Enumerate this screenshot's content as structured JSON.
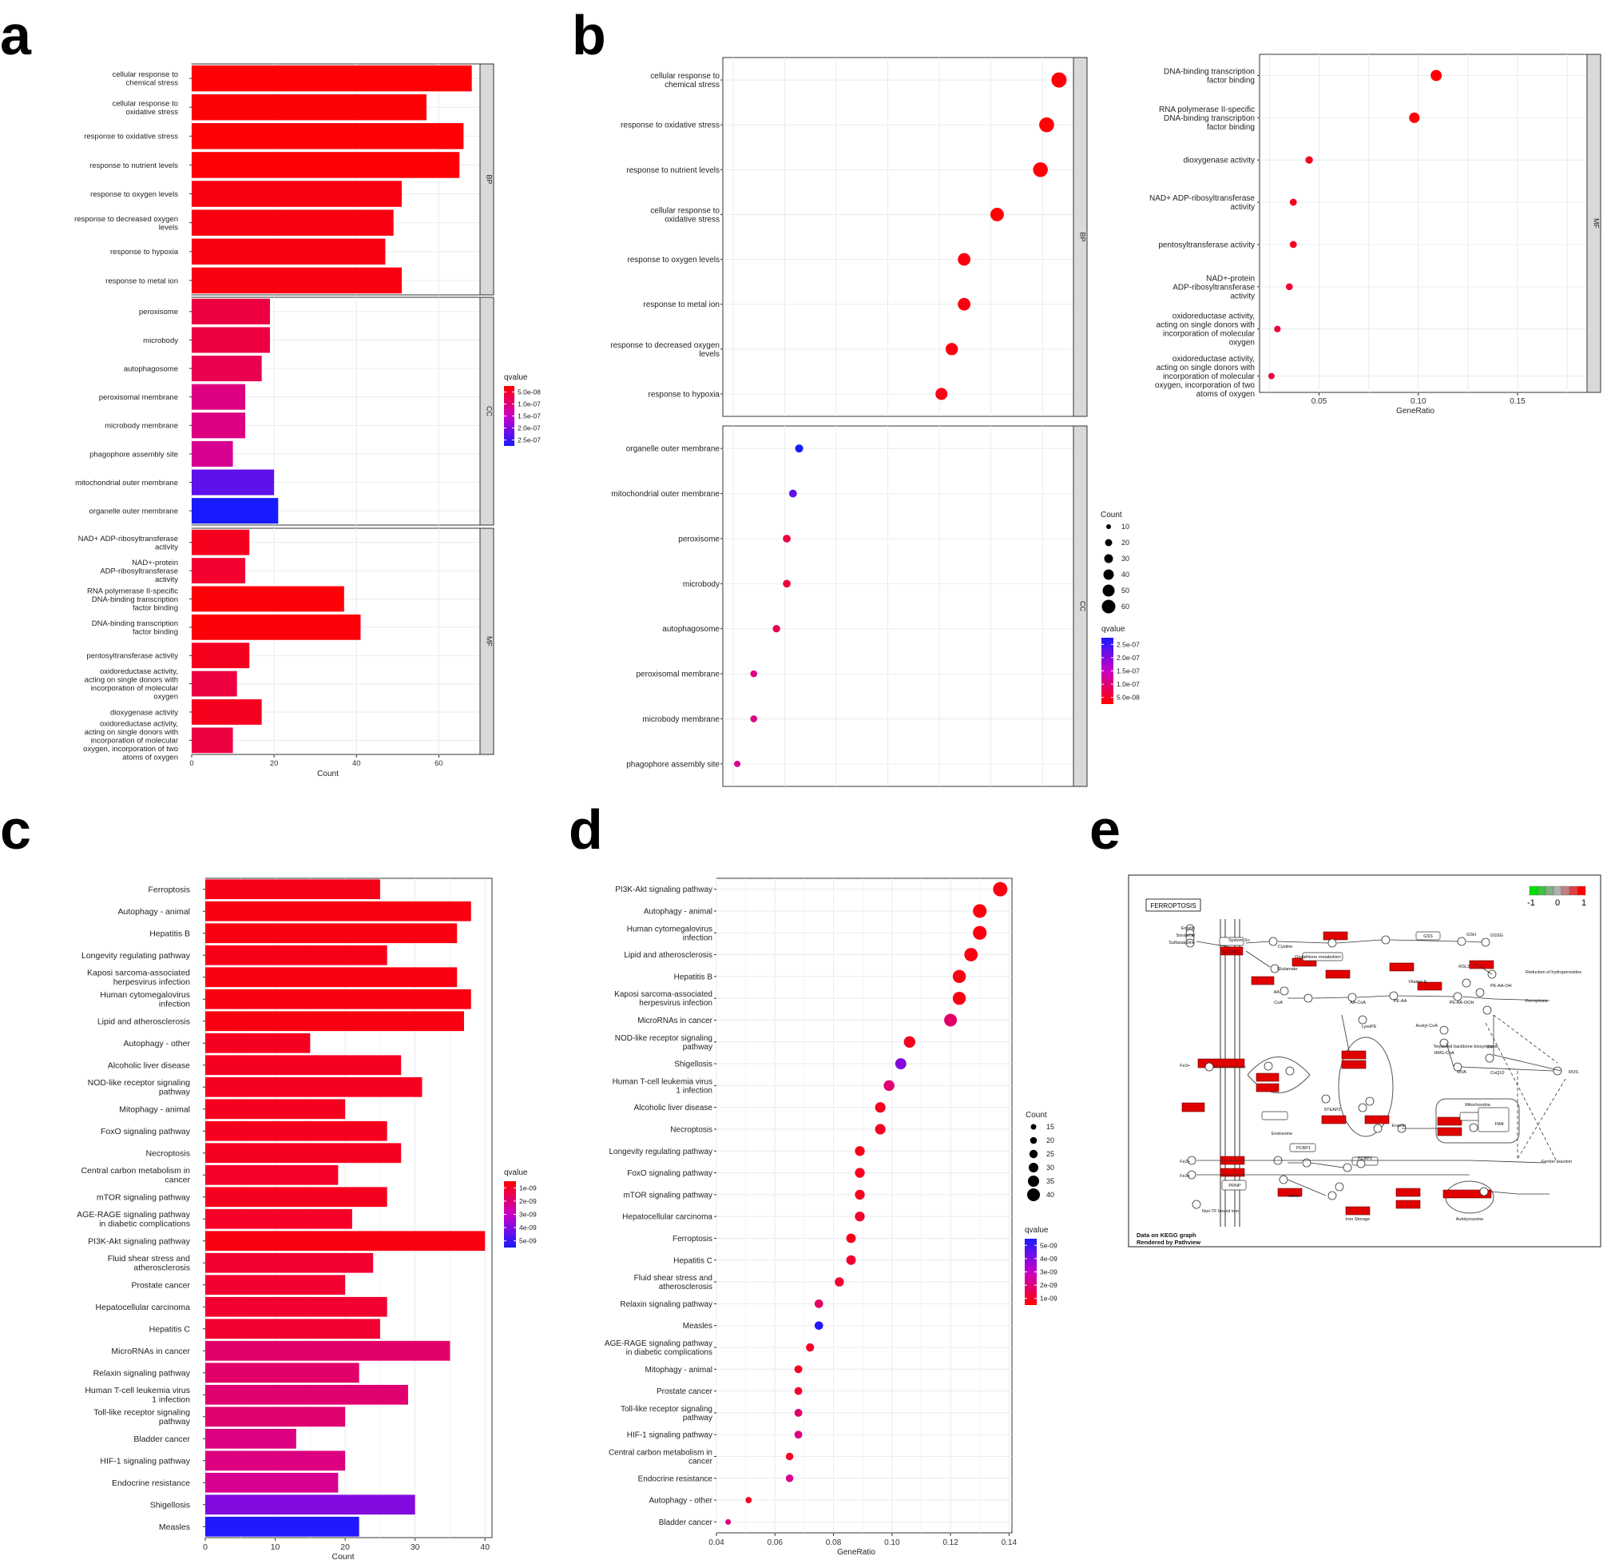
{
  "panel_letters": {
    "a": "a",
    "b": "b",
    "c": "c",
    "d": "d",
    "e": "e"
  },
  "colors": {
    "high_sig": "#ff0000",
    "mid": "#c800c8",
    "low_sig": "#1a1aff",
    "strip": "#d9d9d9",
    "grid": "#ebebeb"
  },
  "chart_data": [
    {
      "id": "a",
      "type": "bar",
      "orientation": "horizontal",
      "xlabel": "Count",
      "xlim": [
        0,
        70
      ],
      "xticks": [
        0,
        20,
        40,
        60
      ],
      "groups": [
        {
          "strip": "BP",
          "categories": [
            "cellular response to\nchemical stress",
            "cellular response to\noxidative stress",
            "response to oxidative stress",
            "response to nutrient levels",
            "response to oxygen levels",
            "response to decreased oxygen\nlevels",
            "response to hypoxia",
            "response to metal ion"
          ],
          "values": [
            68,
            57,
            66,
            65,
            51,
            49,
            47,
            51
          ],
          "qvalues": [
            3e-09,
            4e-09,
            3e-09,
            3e-09,
            1e-08,
            1e-08,
            1.2e-08,
            1e-08
          ]
        },
        {
          "strip": "CC",
          "categories": [
            "peroxisome",
            "microbody",
            "autophagosome",
            "peroxisomal membrane",
            "microbody membrane",
            "phagophore assembly site",
            "mitochondrial outer membrane",
            "organelle outer membrane"
          ],
          "values": [
            19,
            19,
            17,
            13,
            13,
            10,
            20,
            21
          ],
          "qvalues": [
            4e-08,
            4e-08,
            5e-08,
            8e-08,
            8e-08,
            9e-08,
            2e-07,
            2.6e-07
          ]
        },
        {
          "strip": "MF",
          "categories": [
            "NAD+ ADP-ribosyltransferase\nactivity",
            "NAD+-protein\nADP-ribosyltransferase\nactivity",
            "RNA polymerase II-specific\nDNA-binding transcription\nfactor binding",
            "DNA-binding transcription\nfactor binding",
            "pentosyltransferase activity",
            "oxidoreductase activity,\nacting on single donors with\nincorporation of molecular\noxygen",
            "dioxygenase activity",
            "oxidoreductase activity,\nacting on single donors with\nincorporation of molecular\noxygen, incorporation of two\natoms of oxygen"
          ],
          "values": [
            14,
            13,
            37,
            41,
            14,
            11,
            17,
            10
          ],
          "qvalues": [
            2e-08,
            3e-08,
            5e-09,
            5e-09,
            2e-08,
            4e-08,
            2e-08,
            4e-08
          ]
        }
      ],
      "legend": {
        "title": "qvalue",
        "labels": [
          "5.0e-08",
          "1.0e-07",
          "1.5e-07",
          "2.0e-07",
          "2.5e-07"
        ],
        "range": [
          0,
          2.5e-07
        ]
      }
    },
    {
      "id": "b",
      "type": "scatter",
      "xlabel": "GeneRatio",
      "xlim": [
        0.02,
        0.185
      ],
      "xticks": [
        0.05,
        0.1,
        0.15
      ],
      "xticklabels": [
        "0.05",
        "0.10",
        "0.15"
      ],
      "groups": [
        {
          "strip": "BP",
          "categories": [
            "cellular response to\nchemical stress",
            "response to oxidative stress",
            "response to nutrient levels",
            "cellular response to\noxidative stress",
            "response to oxygen levels",
            "response to metal ion",
            "response to decreased oxygen\nlevels",
            "response to hypoxia"
          ],
          "x": [
            0.183,
            0.177,
            0.174,
            0.153,
            0.137,
            0.137,
            0.131,
            0.126
          ],
          "counts": [
            68,
            66,
            65,
            57,
            51,
            51,
            49,
            47
          ],
          "qvalues": [
            3e-09,
            3e-09,
            3e-09,
            4e-09,
            1e-08,
            1e-08,
            1e-08,
            1.2e-08
          ]
        },
        {
          "strip": "CC",
          "categories": [
            "organelle outer membrane",
            "mitochondrial outer membrane",
            "peroxisome",
            "microbody",
            "autophagosome",
            "peroxisomal membrane",
            "microbody membrane",
            "phagophore assembly site"
          ],
          "x": [
            0.057,
            0.054,
            0.051,
            0.051,
            0.046,
            0.035,
            0.035,
            0.027
          ],
          "counts": [
            21,
            20,
            19,
            19,
            17,
            13,
            13,
            10
          ],
          "qvalues": [
            2.6e-07,
            2e-07,
            4e-08,
            4e-08,
            5e-08,
            8e-08,
            8e-08,
            9e-08
          ]
        },
        {
          "strip": "MF",
          "categories": [
            "DNA-binding transcription\nfactor binding",
            "RNA polymerase II-specific\nDNA-binding transcription\nfactor binding",
            "dioxygenase activity",
            "NAD+ ADP-ribosyltransferase\nactivity",
            "pentosyltransferase activity",
            "NAD+-protein\nADP-ribosyltransferase\nactivity",
            "oxidoreductase activity,\nacting on single donors with\nincorporation of molecular\noxygen",
            "oxidoreductase activity,\nacting on single donors with\nincorporation of molecular\noxygen, incorporation of two\natoms of oxygen"
          ],
          "x": [
            0.109,
            0.098,
            0.045,
            0.037,
            0.037,
            0.035,
            0.029,
            0.026
          ],
          "counts": [
            41,
            37,
            17,
            14,
            14,
            13,
            11,
            10
          ],
          "qvalues": [
            5e-09,
            5e-09,
            2e-08,
            2e-08,
            2e-08,
            3e-08,
            4e-08,
            4e-08
          ]
        }
      ],
      "size_legend": {
        "title": "Count",
        "labels": [
          "10",
          "20",
          "30",
          "40",
          "50",
          "60"
        ]
      },
      "legend": {
        "title": "qvalue",
        "labels": [
          "2.5e-07",
          "2.0e-07",
          "1.5e-07",
          "1.0e-07",
          "5.0e-08"
        ],
        "range": [
          0,
          2.5e-07
        ]
      }
    },
    {
      "id": "c",
      "type": "bar",
      "orientation": "horizontal",
      "xlabel": "Count",
      "xlim": [
        0,
        41
      ],
      "xticks": [
        0,
        10,
        20,
        30,
        40
      ],
      "categories": [
        "Ferroptosis",
        "Autophagy - animal",
        "Hepatitis B",
        "Longevity regulating pathway",
        "Kaposi sarcoma-associated\nherpesvirus infection",
        "Human cytomegalovirus\ninfection",
        "Lipid and atherosclerosis",
        "Autophagy - other",
        "Alcoholic liver disease",
        "NOD-like receptor signaling\npathway",
        "Mitophagy - animal",
        "FoxO signaling pathway",
        "Necroptosis",
        "Central carbon metabolism in\ncancer",
        "mTOR signaling pathway",
        "AGE-RAGE signaling pathway\nin diabetic complications",
        "PI3K-Akt signaling pathway",
        "Fluid shear stress and\natherosclerosis",
        "Prostate cancer",
        "Hepatocellular carcinoma",
        "Hepatitis C",
        "MicroRNAs in cancer",
        "Relaxin signaling pathway",
        "Human T-cell leukemia virus\n1 infection",
        "Toll-like receptor signaling\npathway",
        "Bladder cancer",
        "HIF-1 signaling pathway",
        "Endocrine resistance",
        "Shigellosis",
        "Measles"
      ],
      "values": [
        25,
        38,
        36,
        26,
        36,
        38,
        37,
        15,
        28,
        31,
        20,
        26,
        28,
        19,
        26,
        21,
        40,
        24,
        20,
        26,
        25,
        35,
        22,
        29,
        20,
        13,
        20,
        19,
        30,
        22
      ],
      "qvalues": [
        3e-10,
        2e-10,
        2e-10,
        3e-10,
        2e-10,
        2e-10,
        2e-10,
        4e-10,
        4e-10,
        4e-10,
        4e-10,
        4e-10,
        4e-10,
        5e-10,
        4e-10,
        5e-10,
        2e-10,
        6e-10,
        6e-10,
        6e-10,
        6e-10,
        1.3e-09,
        1.3e-09,
        1.4e-09,
        1.4e-09,
        1.6e-09,
        1.6e-09,
        1.8e-09,
        3.5e-09,
        4.9e-09
      ],
      "legend": {
        "title": "qvalue",
        "labels": [
          "1e-09",
          "2e-09",
          "3e-09",
          "4e-09",
          "5e-09"
        ],
        "range": [
          0,
          5e-09
        ]
      }
    },
    {
      "id": "d",
      "type": "scatter",
      "xlabel": "GeneRatio",
      "xlim": [
        0.04,
        0.141
      ],
      "xticks": [
        0.04,
        0.06,
        0.08,
        0.1,
        0.12,
        0.14
      ],
      "xticklabels": [
        "0.04",
        "0.06",
        "0.08",
        "0.10",
        "0.12",
        "0.14"
      ],
      "categories": [
        "PI3K-Akt signaling pathway",
        "Autophagy - animal",
        "Human cytomegalovirus\ninfection",
        "Lipid and atherosclerosis",
        "Hepatitis B",
        "Kaposi sarcoma-associated\nherpesvirus infection",
        "MicroRNAs in cancer",
        "NOD-like receptor signaling\npathway",
        "Shigellosis",
        "Human T-cell leukemia virus\n1 infection",
        "Alcoholic liver disease",
        "Necroptosis",
        "Longevity regulating pathway",
        "FoxO signaling pathway",
        "mTOR signaling pathway",
        "Hepatocellular carcinoma",
        "Ferroptosis",
        "Hepatitis C",
        "Fluid shear stress and\natherosclerosis",
        "Relaxin signaling pathway",
        "Measles",
        "AGE-RAGE signaling pathway\nin diabetic complications",
        "Mitophagy - animal",
        "Prostate cancer",
        "Toll-like receptor signaling\npathway",
        "HIF-1 signaling pathway",
        "Central carbon metabolism in\ncancer",
        "Endocrine resistance",
        "Autophagy - other",
        "Bladder cancer"
      ],
      "x": [
        0.137,
        0.13,
        0.13,
        0.127,
        0.123,
        0.123,
        0.12,
        0.106,
        0.103,
        0.099,
        0.096,
        0.096,
        0.089,
        0.089,
        0.089,
        0.089,
        0.086,
        0.086,
        0.082,
        0.075,
        0.075,
        0.072,
        0.068,
        0.068,
        0.068,
        0.068,
        0.065,
        0.065,
        0.051,
        0.044
      ],
      "counts": [
        40,
        38,
        38,
        37,
        36,
        36,
        35,
        31,
        30,
        29,
        28,
        28,
        26,
        26,
        26,
        26,
        25,
        25,
        24,
        22,
        22,
        21,
        20,
        20,
        20,
        20,
        19,
        19,
        15,
        13
      ],
      "qvalues": [
        2e-10,
        2e-10,
        2e-10,
        2e-10,
        2e-10,
        2e-10,
        1.3e-09,
        4e-10,
        3.5e-09,
        1.4e-09,
        4e-10,
        4e-10,
        3e-10,
        4e-10,
        4e-10,
        6e-10,
        3e-10,
        6e-10,
        6e-10,
        1.3e-09,
        4.9e-09,
        5e-10,
        4e-10,
        6e-10,
        1.4e-09,
        1.6e-09,
        5e-10,
        1.8e-09,
        4e-10,
        1.6e-09
      ],
      "size_legend": {
        "title": "Count",
        "labels": [
          "15",
          "20",
          "25",
          "30",
          "35",
          "40"
        ]
      },
      "legend": {
        "title": "qvalue",
        "labels": [
          "5e-09",
          "4e-09",
          "3e-09",
          "2e-09",
          "1e-09"
        ],
        "range": [
          0,
          5e-09
        ]
      }
    }
  ],
  "pathway_map": {
    "title": "FERROPTOSIS",
    "legend_labels": [
      "-1",
      "0",
      "1"
    ],
    "footer": [
      "Data on KEGG graph",
      "Rendered by Pathview"
    ],
    "nodes_text": [
      "System Xc-",
      "SLC7A11",
      "Cystine",
      "Cysteine",
      "GSS",
      "GSH",
      "GSSG",
      "Glutathione metabolism",
      "Glutamate",
      "RSL3",
      "GPX4",
      "PE-AA-OH",
      "Reduction of hydroperoxides",
      "Ferroptosis",
      "AA",
      "CoA",
      "AA-CoA",
      "PE-AA",
      "PE-AA-OOH",
      "Vitamin E",
      "LysoPE",
      "Acetyl-CoA",
      "HMG-CoA",
      "MVA",
      "IPP",
      "CoQ10",
      "Terpenoid backbone biosynthesis",
      "STEAP3",
      "Endosome",
      "Mitochondria",
      "Fe2+",
      "Fe3+",
      "PCBP1",
      "PCBP2",
      "Heme",
      "Iron Storage",
      "Autolysosome",
      "Ferritin degradation Released iron",
      "ROS",
      "Fenton reaction",
      "PRNP",
      "Non-TF bound iron",
      "TF",
      "TFRC",
      "Erastin",
      "Sorafenib",
      "Sulfasalazine",
      "FtMt"
    ]
  }
}
